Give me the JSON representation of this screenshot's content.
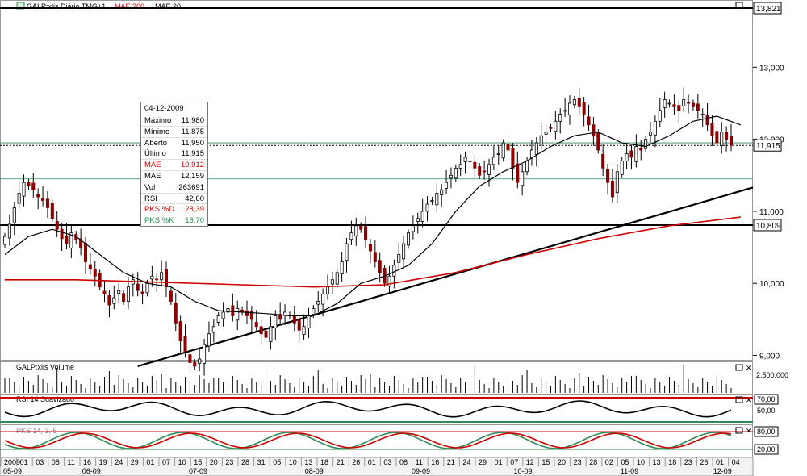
{
  "panes": {
    "price": {
      "title": "GALP:xlis Diário TMG+1",
      "indicators": [
        "MAE 200",
        "MAE 20"
      ],
      "indicator_colors": [
        "#cc0000",
        "#000000"
      ]
    },
    "volume": {
      "title": "GALP:xlis Volume",
      "tick": "2.500.000"
    },
    "rsi": {
      "title": "RSI 14 Suavizado",
      "ticks": [
        "70,00",
        "50,00"
      ]
    },
    "pks": {
      "title": "PKS 14, 3, 5",
      "ticks": [
        "80,00",
        "20,00"
      ]
    }
  },
  "tooltip": {
    "date": "04-12-2009",
    "rows": [
      {
        "label": "Máximo",
        "value": "11,980",
        "color": "#000000"
      },
      {
        "label": "Mínimo",
        "value": "11,875",
        "color": "#000000"
      },
      {
        "label": "Aberto",
        "value": "11,950",
        "color": "#000000"
      },
      {
        "label": "Último",
        "value": "11,915",
        "color": "#000000"
      },
      {
        "label": "MAE",
        "value": "10,912",
        "color": "#cc0000"
      },
      {
        "label": "MAE",
        "value": "12,159",
        "color": "#000000"
      },
      {
        "label": "Vol",
        "value": "263691",
        "color": "#000000"
      },
      {
        "label": "RSI",
        "value": "42,60",
        "color": "#000000"
      },
      {
        "label": "PKS %D",
        "value": "28,39",
        "color": "#cc0000"
      },
      {
        "label": "PKS %K",
        "value": "16,70",
        "color": "#2e8b57"
      }
    ]
  },
  "chart_data": {
    "type": "candlestick",
    "symbol": "GALP:xlis",
    "y_ticks": [
      "13,000",
      "12,000",
      "11,000",
      "10,000",
      "9,000"
    ],
    "price_marks": [
      {
        "label": "13,821",
        "value": 13.821,
        "style": "line"
      },
      {
        "label": "11,915",
        "value": 11.915,
        "style": "dotted"
      },
      {
        "label": "10,809",
        "value": 10.809,
        "style": "line"
      }
    ],
    "x_day_labels": [
      "2009",
      "01",
      "03",
      "08",
      "11",
      "16",
      "19",
      "24",
      "29",
      "01",
      "07",
      "10",
      "15",
      "20",
      "23",
      "28",
      "31",
      "05",
      "10",
      "13",
      "18",
      "21",
      "26",
      "01",
      "03",
      "08",
      "11",
      "16",
      "21",
      "24",
      "29",
      "01",
      "07",
      "12",
      "15",
      "20",
      "23",
      "28",
      "02",
      "05",
      "10",
      "13",
      "18",
      "23",
      "26",
      "01",
      "04"
    ],
    "x_month_labels": [
      {
        "label": "05-09",
        "day_index": 0
      },
      {
        "label": "06-09",
        "day_index": 17
      },
      {
        "label": "07-09",
        "day_index": 40
      },
      {
        "label": "08-09",
        "day_index": 65
      },
      {
        "label": "09-09",
        "day_index": 88
      },
      {
        "label": "10-09",
        "day_index": 110
      },
      {
        "label": "11-09",
        "day_index": 133
      },
      {
        "label": "12-09",
        "day_index": 153
      }
    ],
    "close": [
      10.65,
      10.82,
      11.05,
      11.25,
      11.4,
      11.35,
      11.3,
      11.2,
      11.15,
      11.05,
      10.9,
      10.75,
      10.62,
      10.55,
      10.7,
      10.6,
      10.5,
      10.3,
      10.2,
      10.1,
      9.95,
      9.85,
      9.7,
      9.8,
      9.9,
      9.75,
      9.95,
      10.05,
      9.9,
      9.85,
      10.0,
      10.1,
      10.05,
      10.15,
      9.95,
      9.75,
      9.45,
      9.2,
      9.05,
      8.9,
      8.85,
      8.95,
      9.15,
      9.3,
      9.4,
      9.55,
      9.6,
      9.65,
      9.55,
      9.65,
      9.6,
      9.55,
      9.5,
      9.4,
      9.3,
      9.25,
      9.4,
      9.55,
      9.5,
      9.6,
      9.55,
      9.45,
      9.35,
      9.4,
      9.55,
      9.65,
      9.75,
      9.85,
      9.95,
      10.05,
      10.15,
      10.3,
      10.55,
      10.7,
      10.8,
      10.75,
      10.6,
      10.45,
      10.3,
      10.15,
      10.0,
      10.1,
      10.25,
      10.4,
      10.55,
      10.7,
      10.8,
      10.9,
      11.0,
      11.1,
      11.15,
      11.25,
      11.3,
      11.4,
      11.5,
      11.6,
      11.65,
      11.75,
      11.7,
      11.6,
      11.5,
      11.55,
      11.65,
      11.75,
      11.8,
      11.95,
      11.85,
      11.6,
      11.4,
      11.55,
      11.7,
      11.85,
      11.95,
      12.05,
      12.1,
      12.15,
      12.25,
      12.35,
      12.4,
      12.5,
      12.55,
      12.45,
      12.35,
      12.2,
      12.05,
      11.85,
      11.6,
      11.4,
      11.2,
      11.55,
      11.7,
      11.8,
      11.75,
      11.9,
      11.85,
      12.0,
      12.1,
      12.25,
      12.4,
      12.55,
      12.5,
      12.45,
      12.4,
      12.55,
      12.5,
      12.45,
      12.4,
      12.35,
      12.2,
      12.05,
      11.95,
      12.1,
      12.0,
      11.915
    ],
    "mae20_points": [
      [
        0,
        10.4
      ],
      [
        5,
        10.65
      ],
      [
        10,
        10.75
      ],
      [
        15,
        10.65
      ],
      [
        20,
        10.4
      ],
      [
        25,
        10.15
      ],
      [
        30,
        10.0
      ],
      [
        35,
        9.95
      ],
      [
        40,
        9.75
      ],
      [
        45,
        9.62
      ],
      [
        50,
        9.6
      ],
      [
        55,
        9.58
      ],
      [
        60,
        9.55
      ],
      [
        65,
        9.55
      ],
      [
        70,
        9.72
      ],
      [
        75,
        10.0
      ],
      [
        80,
        10.1
      ],
      [
        85,
        10.25
      ],
      [
        90,
        10.55
      ],
      [
        95,
        11.0
      ],
      [
        100,
        11.35
      ],
      [
        105,
        11.55
      ],
      [
        110,
        11.7
      ],
      [
        115,
        11.9
      ],
      [
        120,
        12.05
      ],
      [
        125,
        12.1
      ],
      [
        130,
        11.95
      ],
      [
        135,
        11.9
      ],
      [
        140,
        12.05
      ],
      [
        145,
        12.25
      ],
      [
        150,
        12.32
      ],
      [
        155,
        12.2
      ]
    ],
    "mae200_points": [
      [
        0,
        10.05
      ],
      [
        15,
        10.05
      ],
      [
        30,
        10.02
      ],
      [
        50,
        9.98
      ],
      [
        65,
        9.95
      ],
      [
        80,
        9.98
      ],
      [
        95,
        10.15
      ],
      [
        110,
        10.4
      ],
      [
        125,
        10.62
      ],
      [
        140,
        10.8
      ],
      [
        155,
        10.92
      ]
    ],
    "trendline": [
      [
        28,
        8.85
      ],
      [
        159,
        11.35
      ]
    ],
    "ylim": [
      8.8,
      13.82
    ]
  }
}
